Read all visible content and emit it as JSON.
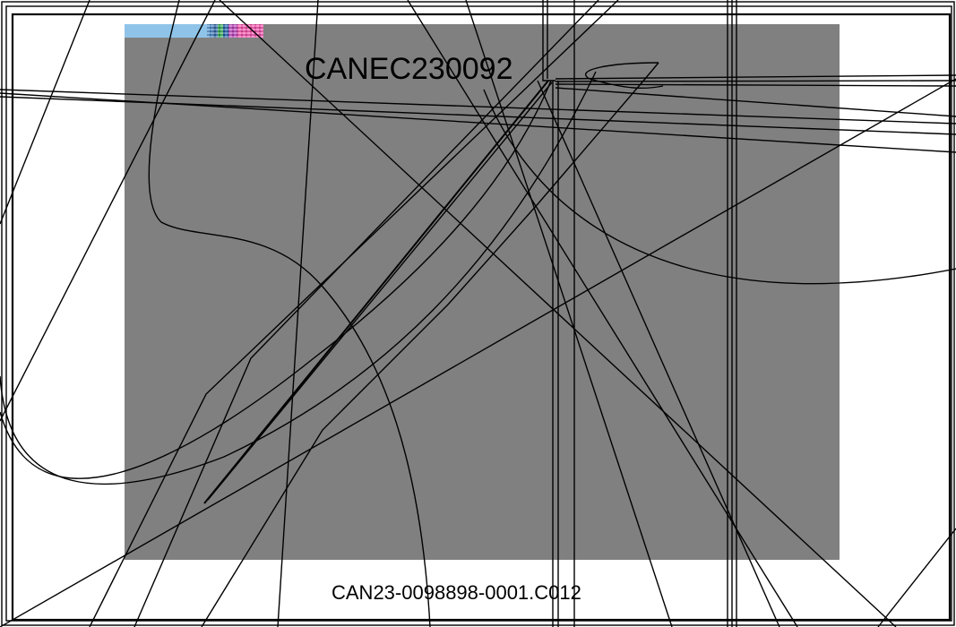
{
  "panel": {
    "code": "CANEC230092",
    "background_color": "#808080"
  },
  "footer": {
    "code": "CAN23-0098898-0001.C012"
  },
  "colors": {
    "page_background": "#ffffff",
    "line_color": "#000000",
    "strip_blue": "#8fc4e8",
    "strip_magenta": "#ff4fb0"
  }
}
